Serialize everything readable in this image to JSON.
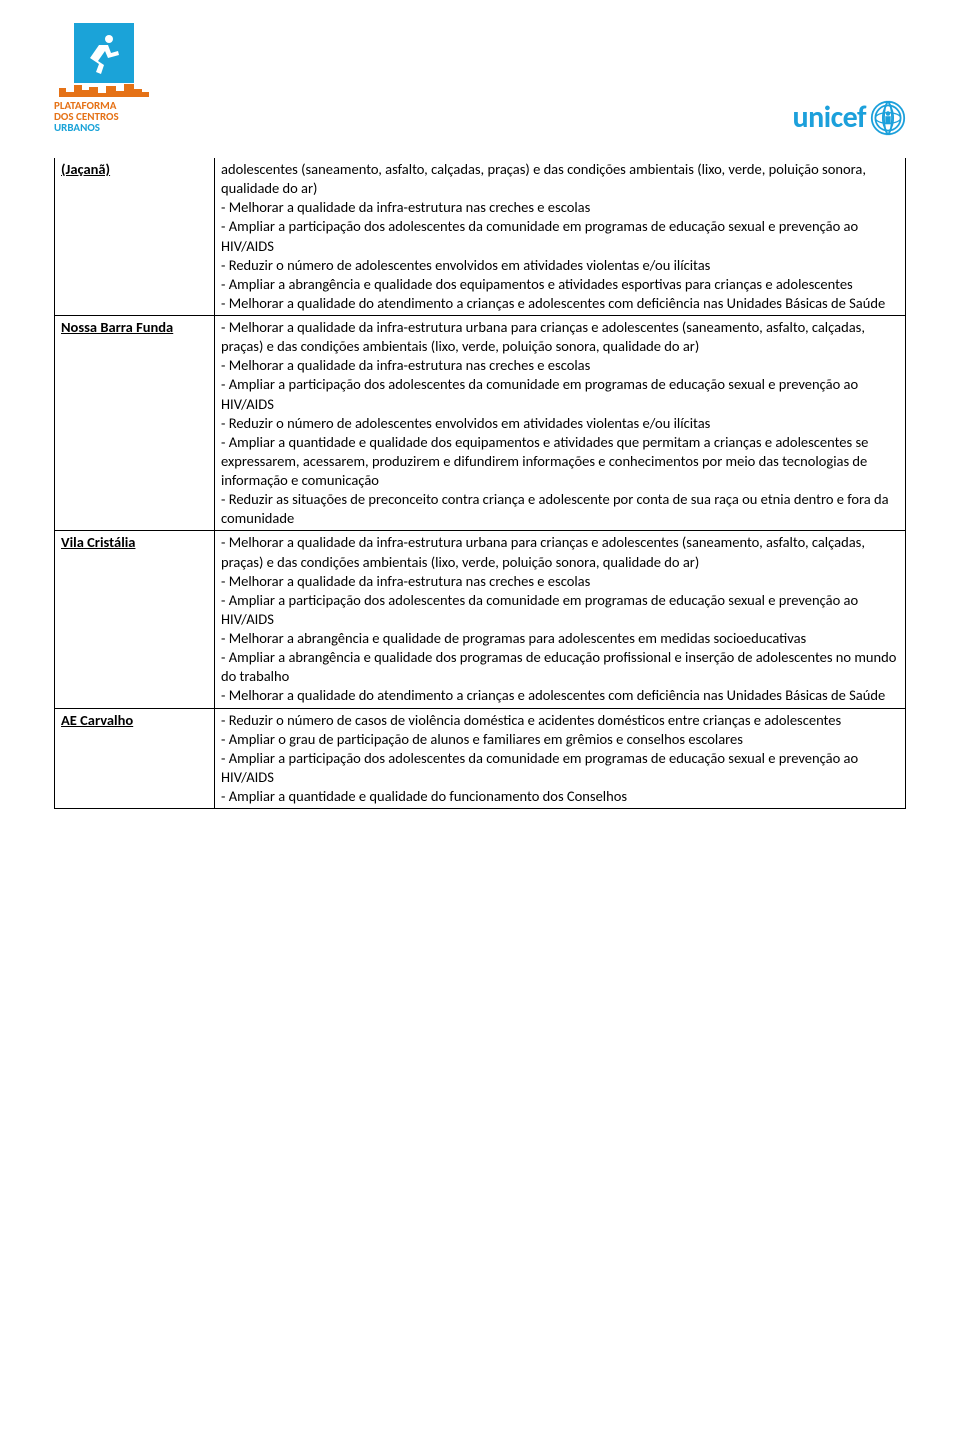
{
  "colors": {
    "text": "#000000",
    "background": "#ffffff",
    "border": "#000000",
    "brand_blue": "#1ba3d8",
    "brand_orange": "#e57217",
    "unicef_blue": "#1ca0db"
  },
  "logos": {
    "left": {
      "line1": "PLATAFORMA",
      "line2": "DOS CENTROS",
      "line3": "URBANOS"
    },
    "right": {
      "text": "unicef"
    }
  },
  "table": {
    "rows": [
      {
        "label": "(Jaçanã)",
        "content": "adolescentes (saneamento, asfalto, calçadas, praças) e das condições ambientais (lixo, verde, poluição sonora, qualidade do ar)\n- Melhorar a qualidade da infra-estrutura nas creches e escolas\n- Ampliar a participação dos adolescentes da comunidade em programas de educação sexual e prevenção ao HIV/AIDS\n- Reduzir o número de adolescentes envolvidos em atividades violentas e/ou ilícitas\n- Ampliar a abrangência e qualidade dos equipamentos e atividades esportivas para crianças e adolescentes\n- Melhorar a qualidade do atendimento a crianças e adolescentes com deficiência nas Unidades Básicas de Saúde"
      },
      {
        "label": "Nossa Barra Funda",
        "content": "- Melhorar a qualidade da infra-estrutura urbana para crianças e adolescentes (saneamento, asfalto, calçadas, praças) e das condições ambientais (lixo, verde, poluição sonora, qualidade do ar)\n- Melhorar a qualidade da infra-estrutura nas creches e escolas\n- Ampliar a participação dos adolescentes da comunidade em programas de educação sexual e prevenção ao HIV/AIDS\n- Reduzir o número de adolescentes envolvidos em atividades violentas e/ou ilícitas\n- Ampliar a quantidade  e qualidade dos equipamentos e atividades que permitam a crianças e adolescentes se expressarem, acessarem, produzirem e difundirem informações e conhecimentos por meio das tecnologias de informação e comunicação\n- Reduzir as situações de preconceito contra criança e adolescente por conta de sua raça ou etnia dentro e fora da comunidade"
      },
      {
        "label": "Vila Cristália",
        "content": "- Melhorar a qualidade da infra-estrutura urbana para crianças e adolescentes (saneamento, asfalto, calçadas, praças) e das condições ambientais (lixo, verde, poluição sonora, qualidade do ar)\n- Melhorar a qualidade da infra-estrutura nas creches e escolas\n- Ampliar a participação dos adolescentes da comunidade em programas de educação sexual e prevenção ao HIV/AIDS\n- Melhorar a abrangência e qualidade de programas para adolescentes em medidas socioeducativas\n- Ampliar a abrangência e qualidade dos programas de educação profissional e inserção de adolescentes no mundo do trabalho\n- Melhorar a qualidade do atendimento a crianças e adolescentes com deficiência nas Unidades Básicas de Saúde"
      },
      {
        "label": "AE Carvalho",
        "content": "- Reduzir o número de casos de violência doméstica e acidentes domésticos entre crianças e adolescentes\n- Ampliar o grau de participação de alunos e familiares em grêmios e conselhos escolares\n- Ampliar a participação dos adolescentes da comunidade em programas de educação sexual e prevenção ao HIV/AIDS\n- Ampliar a quantidade e qualidade do funcionamento dos Conselhos"
      }
    ]
  }
}
